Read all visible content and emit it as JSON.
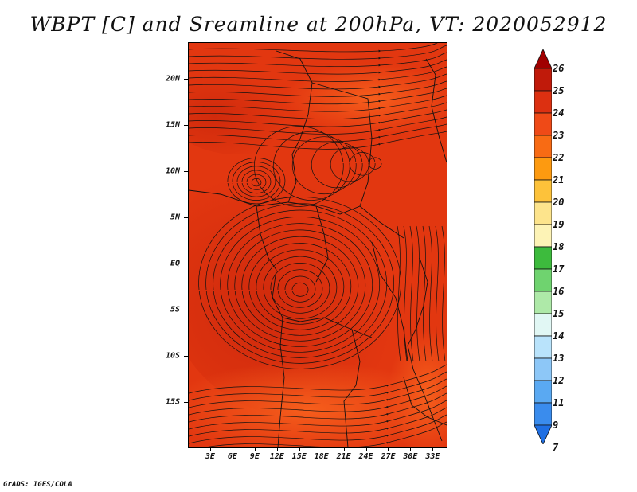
{
  "title": "WBPT [C] and Sreamline at 200hPa, VT: 2020052912",
  "footer": "GrADS: IGES/COLA",
  "map": {
    "lon_range": [
      0,
      35
    ],
    "lat_range": [
      -20,
      24
    ],
    "lat_labels": [
      {
        "lat": 20,
        "text": "20N"
      },
      {
        "lat": 15,
        "text": "15N"
      },
      {
        "lat": 10,
        "text": "10N"
      },
      {
        "lat": 5,
        "text": "5N"
      },
      {
        "lat": 0,
        "text": "EQ"
      },
      {
        "lat": -5,
        "text": "5S"
      },
      {
        "lat": -10,
        "text": "10S"
      },
      {
        "lat": -15,
        "text": "15S"
      }
    ],
    "lon_labels": [
      {
        "lon": 3,
        "text": "3E"
      },
      {
        "lon": 6,
        "text": "6E"
      },
      {
        "lon": 9,
        "text": "9E"
      },
      {
        "lon": 12,
        "text": "12E"
      },
      {
        "lon": 15,
        "text": "15E"
      },
      {
        "lon": 18,
        "text": "18E"
      },
      {
        "lon": 21,
        "text": "21E"
      },
      {
        "lon": 24,
        "text": "24E"
      },
      {
        "lon": 27,
        "text": "27E"
      },
      {
        "lon": 30,
        "text": "30E"
      },
      {
        "lon": 33,
        "text": "33E"
      }
    ],
    "field_colors": {
      "base": "#e5380f",
      "warm": "#d42a0c",
      "cool": "#f2561a"
    }
  },
  "colorbar": {
    "labels": [
      "26",
      "25",
      "24",
      "23",
      "22",
      "21",
      "20",
      "19",
      "18",
      "17",
      "16",
      "15",
      "14",
      "13",
      "12",
      "11",
      "9",
      "7"
    ],
    "colors": [
      "#a00000",
      "#c01a0a",
      "#dc3011",
      "#ef4a17",
      "#f86b14",
      "#fd9a10",
      "#fdc23a",
      "#fde48c",
      "#fdf3b6",
      "#3dbb3d",
      "#6fd36f",
      "#aee9a8",
      "#e1f7f4",
      "#b9e3fb",
      "#8dc7f7",
      "#5aa9f2",
      "#3a8ced",
      "#1f6fe3"
    ]
  }
}
